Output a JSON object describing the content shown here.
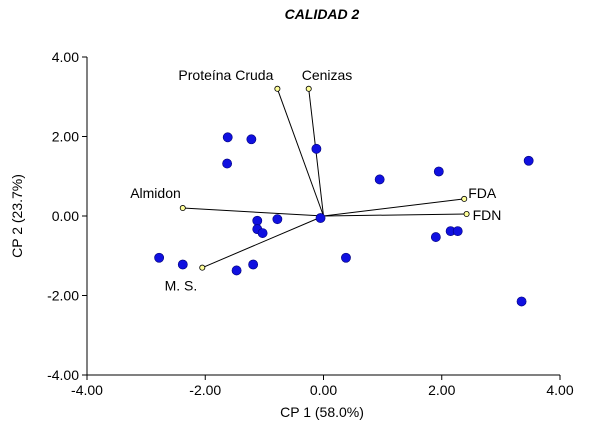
{
  "chart_data": {
    "type": "scatter",
    "subtype": "biplot",
    "title": "CALIDAD 2",
    "xlabel": "CP 1 (58.0%)",
    "ylabel": "CP 2 (23.7%)",
    "xlim": [
      -4.0,
      4.0
    ],
    "ylim": [
      -4.0,
      4.0
    ],
    "xticks": [
      "-4.00",
      "-2.00",
      "0.00",
      "2.00",
      "4.00"
    ],
    "yticks": [
      "4.00",
      "2.00",
      "0.00",
      "-2.00",
      "-4.00"
    ],
    "xtick_values": [
      -4,
      -2,
      0,
      2,
      4
    ],
    "ytick_values": [
      4,
      2,
      0,
      -2,
      -4
    ],
    "grid": false,
    "point_color": "#1010e0",
    "vector_endpoint_color": "#ffff99",
    "points": [
      {
        "x": -1.62,
        "y": 1.98
      },
      {
        "x": -1.22,
        "y": 1.93
      },
      {
        "x": -1.63,
        "y": 1.32
      },
      {
        "x": -0.12,
        "y": 1.69
      },
      {
        "x": 0.95,
        "y": 0.92
      },
      {
        "x": 1.95,
        "y": 1.12
      },
      {
        "x": 3.47,
        "y": 1.39
      },
      {
        "x": -1.12,
        "y": -0.12
      },
      {
        "x": -0.78,
        "y": -0.08
      },
      {
        "x": -0.05,
        "y": -0.05
      },
      {
        "x": -1.12,
        "y": -0.33
      },
      {
        "x": -1.03,
        "y": -0.43
      },
      {
        "x": -2.78,
        "y": -1.05
      },
      {
        "x": -2.38,
        "y": -1.22
      },
      {
        "x": -1.47,
        "y": -1.37
      },
      {
        "x": -1.19,
        "y": -1.22
      },
      {
        "x": 0.38,
        "y": -1.05
      },
      {
        "x": 1.9,
        "y": -0.53
      },
      {
        "x": 2.15,
        "y": -0.38
      },
      {
        "x": 2.27,
        "y": -0.38
      },
      {
        "x": 3.35,
        "y": -2.15
      }
    ],
    "vectors": [
      {
        "label": "Proteína Cruda",
        "x": -0.78,
        "y": 3.2
      },
      {
        "label": "Cenizas",
        "x": -0.25,
        "y": 3.2
      },
      {
        "label": "Almidon",
        "x": -2.38,
        "y": 0.2
      },
      {
        "label": "FDA",
        "x": 2.38,
        "y": 0.43
      },
      {
        "label": "FDN",
        "x": 2.42,
        "y": 0.05
      },
      {
        "label": "M. S.",
        "x": -2.05,
        "y": -1.3
      }
    ]
  }
}
